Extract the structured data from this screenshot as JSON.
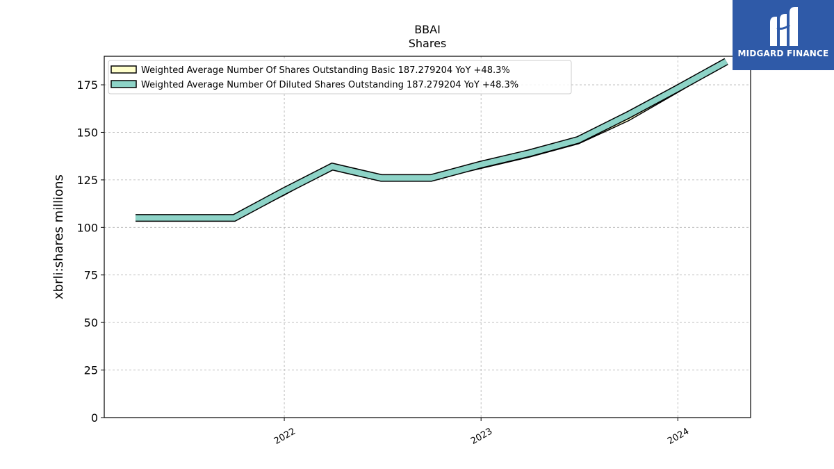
{
  "chart_data": {
    "type": "line",
    "title": "BBAI",
    "subtitle": "Shares",
    "xlabel": "",
    "ylabel": "xbrli:shares millions",
    "ylim": [
      0,
      190
    ],
    "xlim": [
      "2021-02-01",
      "2024-05-15"
    ],
    "yticks": [
      0,
      25,
      50,
      75,
      100,
      125,
      150,
      175
    ],
    "xticks": [
      {
        "label": "2022",
        "date": "2022-01-01"
      },
      {
        "label": "2023",
        "date": "2023-01-01"
      },
      {
        "label": "2024",
        "date": "2024-01-01"
      }
    ],
    "grid": true,
    "legend_position": "top-left",
    "x": [
      "2021-03-31",
      "2021-06-30",
      "2021-09-30",
      "2021-12-31",
      "2022-03-31",
      "2022-06-30",
      "2022-09-30",
      "2022-12-31",
      "2023-03-31",
      "2023-06-30",
      "2023-09-30",
      "2023-12-31",
      "2024-03-31"
    ],
    "series": [
      {
        "name": "Weighted Average Number Of Shares Outstanding Basic  187.279204 YoY +48.3%",
        "color": "#ffffcc",
        "values": [
          105,
          105,
          105,
          118,
          132,
          126,
          126,
          132,
          138,
          145,
          157,
          172,
          187.279204
        ]
      },
      {
        "name": "Weighted Average Number Of Diluted Shares Outstanding  187.279204 YoY +48.3%",
        "color": "#8dd3c7",
        "values": [
          105,
          105,
          105,
          119,
          132,
          126,
          126,
          133,
          139,
          146,
          159,
          173,
          187.279204
        ]
      }
    ]
  },
  "logo": {
    "text": "MIDGARD FINANCE"
  }
}
